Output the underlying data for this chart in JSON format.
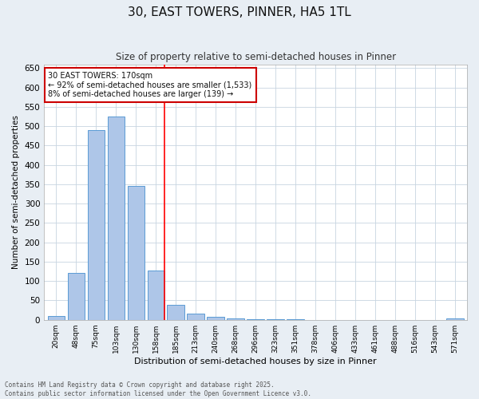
{
  "title_line1": "30, EAST TOWERS, PINNER, HA5 1TL",
  "title_line2": "Size of property relative to semi-detached houses in Pinner",
  "xlabel": "Distribution of semi-detached houses by size in Pinner",
  "ylabel": "Number of semi-detached properties",
  "categories": [
    "20sqm",
    "48sqm",
    "75sqm",
    "103sqm",
    "130sqm",
    "158sqm",
    "185sqm",
    "213sqm",
    "240sqm",
    "268sqm",
    "296sqm",
    "323sqm",
    "351sqm",
    "378sqm",
    "406sqm",
    "433sqm",
    "461sqm",
    "488sqm",
    "516sqm",
    "543sqm",
    "571sqm"
  ],
  "values": [
    10,
    120,
    490,
    525,
    345,
    128,
    38,
    16,
    8,
    4,
    2,
    1,
    1,
    0,
    0,
    0,
    0,
    0,
    0,
    0,
    3
  ],
  "bar_color": "#aec6e8",
  "bar_edge_color": "#5b9bd5",
  "vline_x": 5.45,
  "vline_label": "30 EAST TOWERS: 170sqm",
  "annotation_smaller": "← 92% of semi-detached houses are smaller (1,533)",
  "annotation_larger": "8% of semi-detached houses are larger (139) →",
  "annotation_box_color": "#ffffff",
  "annotation_box_edge": "#cc0000",
  "ylim": [
    0,
    660
  ],
  "yticks": [
    0,
    50,
    100,
    150,
    200,
    250,
    300,
    350,
    400,
    450,
    500,
    550,
    600,
    650
  ],
  "footer_line1": "Contains HM Land Registry data © Crown copyright and database right 2025.",
  "footer_line2": "Contains public sector information licensed under the Open Government Licence v3.0.",
  "bg_color": "#e8eef4",
  "plot_bg_color": "#ffffff",
  "grid_color": "#c8d4e0"
}
